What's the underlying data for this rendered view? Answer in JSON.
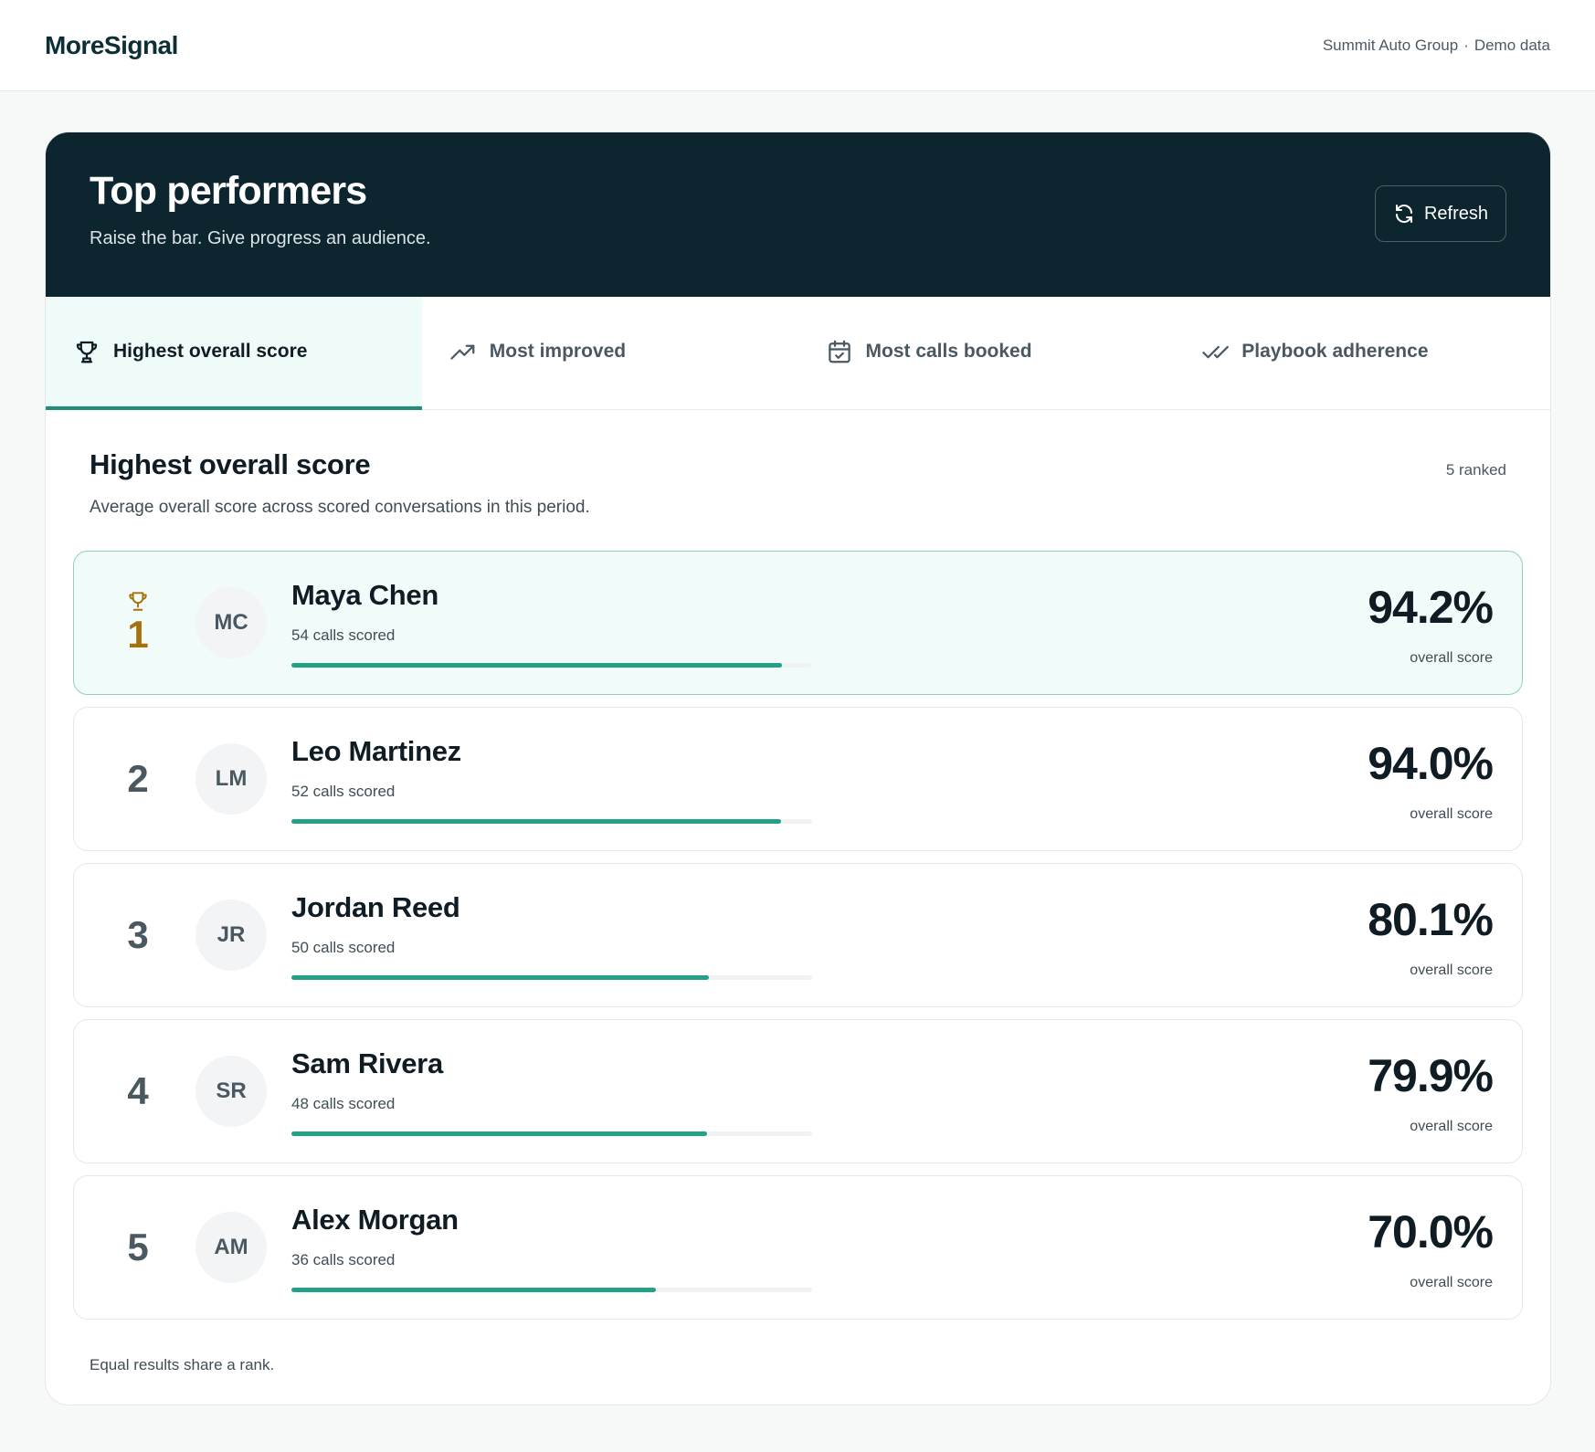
{
  "header": {
    "brand": "MoreSignal",
    "org": "Summit Auto Group",
    "separator": "·",
    "mode": "Demo data"
  },
  "hero": {
    "title": "Top performers",
    "subtitle": "Raise the bar. Give progress an audience.",
    "refresh_label": "Refresh"
  },
  "tabs": [
    {
      "label": "Highest overall score",
      "icon": "trophy-icon",
      "active": true
    },
    {
      "label": "Most improved",
      "icon": "trending-up-icon",
      "active": false
    },
    {
      "label": "Most calls booked",
      "icon": "calendar-check-icon",
      "active": false
    },
    {
      "label": "Playbook adherence",
      "icon": "double-check-icon",
      "active": false
    }
  ],
  "section": {
    "title": "Highest overall score",
    "description": "Average overall score across scored conversations in this period.",
    "ranked_count": "5 ranked"
  },
  "rankings": [
    {
      "rank": "1",
      "initials": "MC",
      "name": "Maya Chen",
      "calls": "54 calls scored",
      "score": "94.2%",
      "score_label": "overall score",
      "progress": 0.942
    },
    {
      "rank": "2",
      "initials": "LM",
      "name": "Leo Martinez",
      "calls": "52 calls scored",
      "score": "94.0%",
      "score_label": "overall score",
      "progress": 0.94
    },
    {
      "rank": "3",
      "initials": "JR",
      "name": "Jordan Reed",
      "calls": "50 calls scored",
      "score": "80.1%",
      "score_label": "overall score",
      "progress": 0.801
    },
    {
      "rank": "4",
      "initials": "SR",
      "name": "Sam Rivera",
      "calls": "48 calls scored",
      "score": "79.9%",
      "score_label": "overall score",
      "progress": 0.799
    },
    {
      "rank": "5",
      "initials": "AM",
      "name": "Alex Morgan",
      "calls": "36 calls scored",
      "score": "70.0%",
      "score_label": "overall score",
      "progress": 0.7
    }
  ],
  "footnote": "Equal results share a rank.",
  "colors": {
    "accent": "#23a086",
    "hero_bg": "#0c252e",
    "gold": "#a8700c"
  }
}
